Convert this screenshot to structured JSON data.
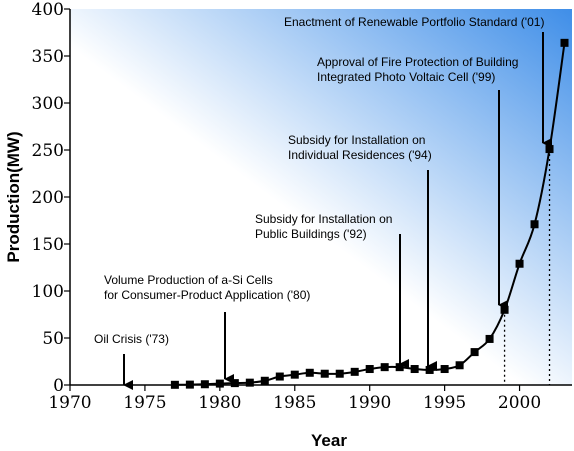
{
  "chart_data": {
    "type": "line",
    "xlabel": "Year",
    "ylabel": "Production(MW)",
    "xlim": [
      1970,
      2003.5
    ],
    "ylim": [
      0,
      400
    ],
    "x_ticks": [
      "1970",
      "1975",
      "1980",
      "1985",
      "1990",
      "1995",
      "2000"
    ],
    "y_ticks": [
      "0",
      "50",
      "100",
      "150",
      "200",
      "250",
      "300",
      "350",
      "400"
    ],
    "grid": false,
    "background": "gradient white-to-blue (top-right)",
    "series": [
      {
        "x": [
          1977,
          1978,
          1979,
          1980,
          1981,
          1982,
          1983,
          1984,
          1985,
          1986,
          1987,
          1988,
          1989,
          1990,
          1991,
          1992,
          1993,
          1994,
          1995,
          1996,
          1997,
          1998,
          1999,
          2000,
          2001,
          2002,
          2003
        ],
        "values": [
          0.2,
          0.4,
          0.8,
          1.5,
          2.0,
          2.5,
          4.5,
          9,
          11,
          13,
          12,
          12,
          14,
          17,
          19,
          19,
          17,
          16,
          17,
          21,
          35,
          49,
          80,
          129,
          171,
          251,
          364
        ]
      }
    ],
    "annotations": [
      {
        "text": "Oil Crisis ('73)",
        "x": 1973
      },
      {
        "text": "Volume Production of a-Si Cells\nfor Consumer-Product Application ('80)",
        "x": 1980
      },
      {
        "text": "Subsidy for Installation on\nPublic Buildings ('92)",
        "x": 1992
      },
      {
        "text": "Subsidy for Installation on\nIndividual Residences ('94)",
        "x": 1994
      },
      {
        "text": "Approval of Fire Protection of Building\nIntegrated Photo Voltaic Cell ('99)",
        "x": 1999
      },
      {
        "text": "Enactment of Renewable Portfolio Standard ('01)",
        "x": 2002
      }
    ],
    "dotted_guides_x": [
      1999,
      2002
    ]
  },
  "colors": {
    "line": "#000000",
    "marker": "#000000",
    "gradient_light": "#ffffff",
    "gradient_dark": "#3f8ee8"
  }
}
